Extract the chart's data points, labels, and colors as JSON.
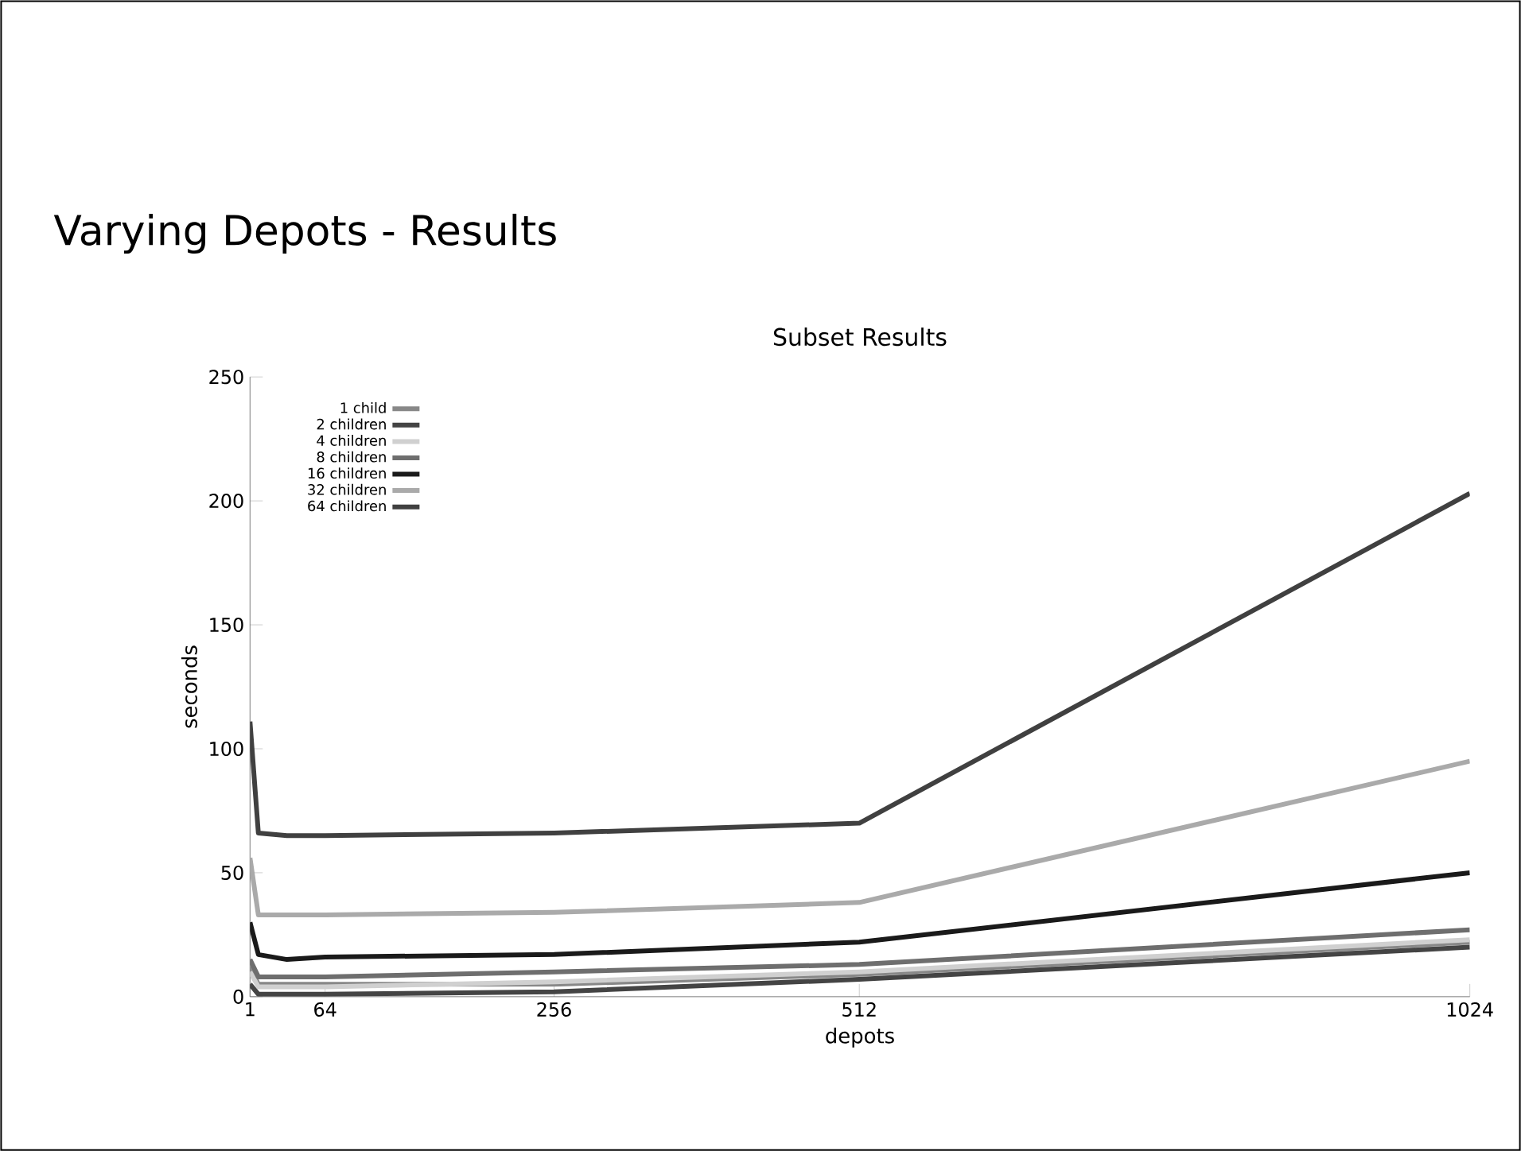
{
  "chart_data": {
    "type": "line",
    "title": "Varying Depots - Results",
    "subtitle": "Subset Results",
    "xlabel": "depots",
    "ylabel": "seconds",
    "x": [
      1,
      8,
      32,
      64,
      256,
      512,
      1024
    ],
    "xlim": [
      1,
      1024
    ],
    "xticks": [
      1,
      64,
      256,
      512,
      1024
    ],
    "ylim": [
      0,
      250
    ],
    "yticks": [
      0,
      50,
      100,
      150,
      200,
      250
    ],
    "legend": "top left",
    "grid": false,
    "marker": "none",
    "line_style": "solid",
    "series": [
      {
        "name": "1 child",
        "color": "#888888",
        "values": [
          12,
          5,
          5,
          5,
          5,
          9,
          22
        ]
      },
      {
        "name": "2 children",
        "color": "#444444",
        "values": [
          5,
          1,
          1,
          1,
          2,
          7,
          20
        ]
      },
      {
        "name": "4 children",
        "color": "#d0d0d0",
        "values": [
          10,
          4,
          4,
          4,
          6,
          10,
          23
        ]
      },
      {
        "name": "8 children",
        "color": "#6e6e6e",
        "values": [
          15,
          8,
          8,
          8,
          10,
          13,
          27
        ]
      },
      {
        "name": "16 children",
        "color": "#1a1a1a",
        "values": [
          30,
          17,
          15,
          16,
          17,
          22,
          50
        ]
      },
      {
        "name": "32 children",
        "color": "#aaaaaa",
        "values": [
          56,
          33,
          33,
          33,
          34,
          38,
          95
        ]
      },
      {
        "name": "64 children",
        "color": "#404040",
        "values": [
          111,
          66,
          65,
          65,
          66,
          70,
          203
        ]
      }
    ]
  }
}
